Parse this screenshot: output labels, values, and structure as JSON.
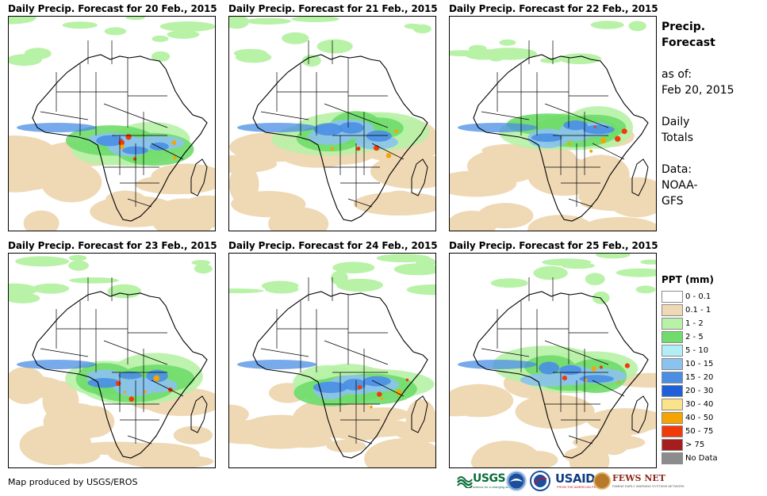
{
  "panels": [
    {
      "title": "Daily Precip. Forecast for 20 Feb., 2015"
    },
    {
      "title": "Daily Precip. Forecast for 21 Feb., 2015"
    },
    {
      "title": "Daily Precip. Forecast for 22 Feb., 2015"
    },
    {
      "title": "Daily Precip. Forecast for 23 Feb., 2015"
    },
    {
      "title": "Daily Precip. Forecast for 24 Feb., 2015"
    },
    {
      "title": "Daily Precip. Forecast for 25 Feb., 2015"
    }
  ],
  "side": {
    "title_line1": "Precip.",
    "title_line2": "Forecast",
    "asof_line1": "as of:",
    "asof_line2": "Feb 20, 2015",
    "totals_line1": "Daily",
    "totals_line2": "Totals",
    "data_line1": "Data:",
    "data_line2": "NOAA-",
    "data_line3": "GFS"
  },
  "legend": {
    "title": "PPT (mm)",
    "items": [
      {
        "label": "0 - 0.1",
        "color": "#ffffff"
      },
      {
        "label": "0.1 - 1",
        "color": "#efd8b4"
      },
      {
        "label": "1 - 2",
        "color": "#b7f2a6"
      },
      {
        "label": "2 - 5",
        "color": "#6fdc6c"
      },
      {
        "label": "5 - 10",
        "color": "#b2eef6"
      },
      {
        "label": "10 - 15",
        "color": "#8cc2ee"
      },
      {
        "label": "15 - 20",
        "color": "#4a8ee4"
      },
      {
        "label": "20 - 30",
        "color": "#1f5fd8"
      },
      {
        "label": "30 - 40",
        "color": "#fae38a"
      },
      {
        "label": "40 - 50",
        "color": "#f6a400"
      },
      {
        "label": "50 - 75",
        "color": "#f03a0a"
      },
      {
        "label": "> 75",
        "color": "#a61d1d"
      },
      {
        "label": "No Data",
        "color": "#8c8c8c"
      }
    ]
  },
  "footer": {
    "credit": "Map produced by USGS/EROS",
    "usgs": "USGS",
    "usgs_tag": "science for a changing world",
    "usaid": "USAID",
    "usaid_tag": "FROM THE AMERICAN PEOPLE",
    "fews": "FEWS NET",
    "fews_tag": "FAMINE EARLY WARNING SYSTEMS NETWORK"
  }
}
